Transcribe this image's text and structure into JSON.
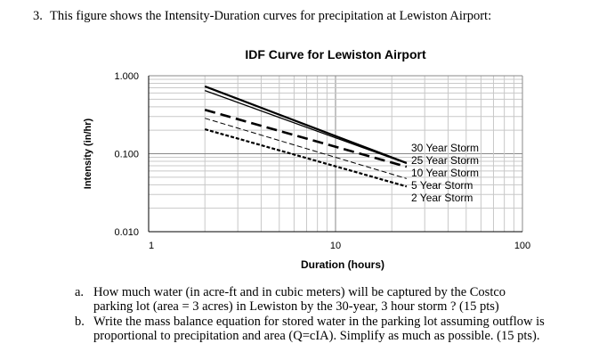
{
  "question": {
    "number": "3.",
    "text": "This figure shows the Intensity-Duration curves for precipitation at Lewiston Airport:"
  },
  "parts": [
    {
      "label": "a.",
      "lines": [
        "How much water (in acre-ft and in cubic meters) will be captured by the Costco",
        "parking lot (area = 3 acres) in Lewiston by the 30-year, 3 hour storm ? (15 pts)"
      ]
    },
    {
      "label": "b.",
      "lines": [
        "Write the mass balance equation for stored water in the parking lot assuming outflow is",
        "proportional to precipitation and area (Q=cIA).  Simplify as much as possible. (15 pts)."
      ]
    }
  ],
  "chart_data": {
    "type": "line",
    "title": "IDF Curve for Lewiston Airport",
    "xlabel": "Duration (hours)",
    "ylabel": "Intensity (in/hr)",
    "xscale": "log",
    "yscale": "log",
    "xlim": [
      1,
      100
    ],
    "ylim": [
      0.01,
      1
    ],
    "xticks": [
      "1",
      "10",
      "100"
    ],
    "yticks": [
      "0.010",
      "0.100",
      "1.000"
    ],
    "grid": true,
    "legend": "inline labels at line ends",
    "series": [
      {
        "name": "30 Year Storm",
        "x": [
          2,
          24
        ],
        "y": [
          0.73,
          0.076
        ],
        "style": "solid-thick"
      },
      {
        "name": "25 Year Storm",
        "x": [
          2,
          24
        ],
        "y": [
          0.645,
          0.075
        ],
        "style": "solid"
      },
      {
        "name": "10 Year Storm",
        "x": [
          2,
          24
        ],
        "y": [
          0.365,
          0.068
        ],
        "style": "long-dash"
      },
      {
        "name": "5 Year Storm",
        "x": [
          2,
          24
        ],
        "y": [
          0.285,
          0.048
        ],
        "style": "thin-dash"
      },
      {
        "name": "2 Year Storm",
        "x": [
          2,
          24
        ],
        "y": [
          0.206,
          0.038
        ],
        "style": "short-dash"
      }
    ]
  }
}
